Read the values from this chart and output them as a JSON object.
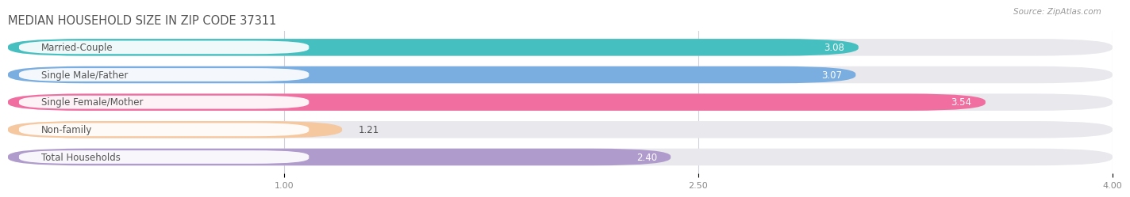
{
  "title": "MEDIAN HOUSEHOLD SIZE IN ZIP CODE 37311",
  "source": "Source: ZipAtlas.com",
  "categories": [
    "Married-Couple",
    "Single Male/Father",
    "Single Female/Mother",
    "Non-family",
    "Total Households"
  ],
  "values": [
    3.08,
    3.07,
    3.54,
    1.21,
    2.4
  ],
  "bar_colors": [
    "#45bfbf",
    "#7baee0",
    "#f06fa0",
    "#f5c8a0",
    "#b09ccc"
  ],
  "track_color": "#e8e8ed",
  "xlim_start": 0.0,
  "xlim_end": 4.0,
  "xticks": [
    1.0,
    2.5,
    4.0
  ],
  "xtick_labels": [
    "1.00",
    "2.50",
    "4.00"
  ],
  "label_fontsize": 8.5,
  "value_fontsize": 8.5,
  "title_fontsize": 10.5,
  "bar_height": 0.62,
  "bar_gap": 1.0,
  "background_color": "#ffffff",
  "label_bg_color": "#ffffff",
  "text_color_dark": "#555555",
  "text_color_light": "#ffffff",
  "grid_color": "#d0d0d8",
  "title_color": "#555555",
  "source_color": "#999999"
}
